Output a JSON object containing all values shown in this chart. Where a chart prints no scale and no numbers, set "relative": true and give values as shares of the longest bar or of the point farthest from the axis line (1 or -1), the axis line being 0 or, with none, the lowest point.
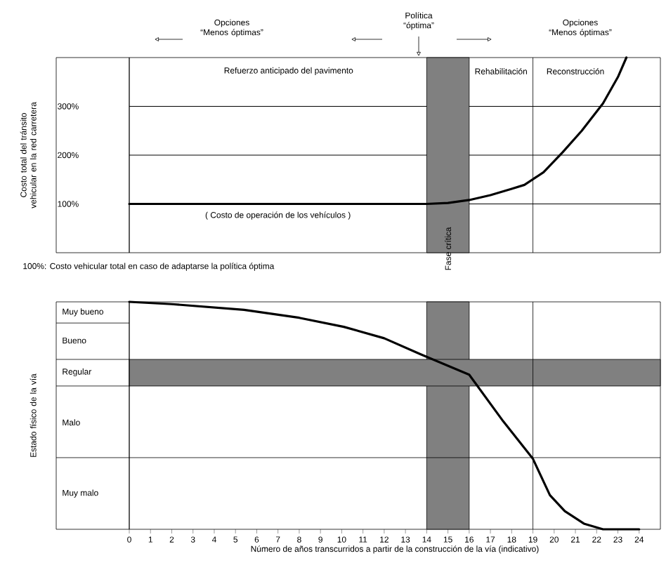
{
  "chart_data": [
    {
      "type": "line",
      "ylabel": "Costo total del tránsito vehicular en la red carretera",
      "xlim": [
        0,
        25
      ],
      "ylim": [
        0,
        400
      ],
      "yticks": [
        {
          "value": 100,
          "label": "100%"
        },
        {
          "value": 200,
          "label": "200%"
        },
        {
          "value": 300,
          "label": "300%"
        }
      ],
      "tick_labels": "y",
      "grid": "y",
      "series": [
        {
          "color": "#000000",
          "x": [
            0,
            14,
            15,
            16,
            17,
            18,
            18.6,
            19.5,
            20.4,
            21.3,
            22.3,
            23,
            23.4
          ],
          "values": [
            100,
            100,
            102,
            108,
            118,
            131,
            139,
            165,
            206,
            250,
            306,
            360,
            400
          ]
        }
      ],
      "bands": [
        {
          "axis": "x",
          "from": 14,
          "to": 16,
          "label": "Fase crítica",
          "color": "#808080"
        }
      ],
      "ref_lines": [
        {
          "axis": "x",
          "value": 19
        }
      ],
      "annotations": [
        "Opciones “Menos óptimas”",
        "Política “óptima”",
        "Opciones “Menos óptimas”",
        "Refuerzo anticipado del pavimento",
        "Rehabilitación",
        "Reconstrucción",
        "( Costo de operación de los vehículos )",
        "100%: Costo vehicular total en caso de adaptarse la política óptima"
      ]
    },
    {
      "type": "line",
      "relative": true,
      "ylabel": "Estado físico de la vía",
      "xlabel": "Número de años transcurridos a partir de la construcción de la vía (indicativo)",
      "xlim": [
        0,
        25
      ],
      "xticks": [
        0,
        1,
        2,
        3,
        4,
        5,
        6,
        7,
        8,
        9,
        10,
        11,
        12,
        13,
        14,
        15,
        16,
        17,
        18,
        19,
        20,
        21,
        22,
        23,
        24
      ],
      "tick_labels": "x",
      "series": [
        {
          "color": "#000000",
          "x": [
            0,
            2,
            5.4,
            8,
            10.1,
            12,
            13.7,
            16,
            17.6,
            19,
            19.8,
            20.5,
            21.4,
            22.3,
            24
          ],
          "values": [
            1,
            0.99,
            0.965,
            0.93,
            0.89,
            0.84,
            0.77,
            0.68,
            0.475,
            0.31,
            0.15,
            0.08,
            0.025,
            0,
            0
          ]
        }
      ],
      "bands": [
        {
          "axis": "x",
          "from": 14,
          "to": 16,
          "color": "#808080"
        },
        {
          "axis": "y",
          "from": 0.63,
          "to": 0.747,
          "color": "#808080"
        }
      ],
      "ref_lines": [
        {
          "axis": "y",
          "value": 0.315
        },
        {
          "axis": "x",
          "value": 19
        }
      ],
      "annotations": [
        "Muy malo",
        "Malo",
        "Regular",
        "Bueno",
        "Muy bueno"
      ]
    }
  ]
}
